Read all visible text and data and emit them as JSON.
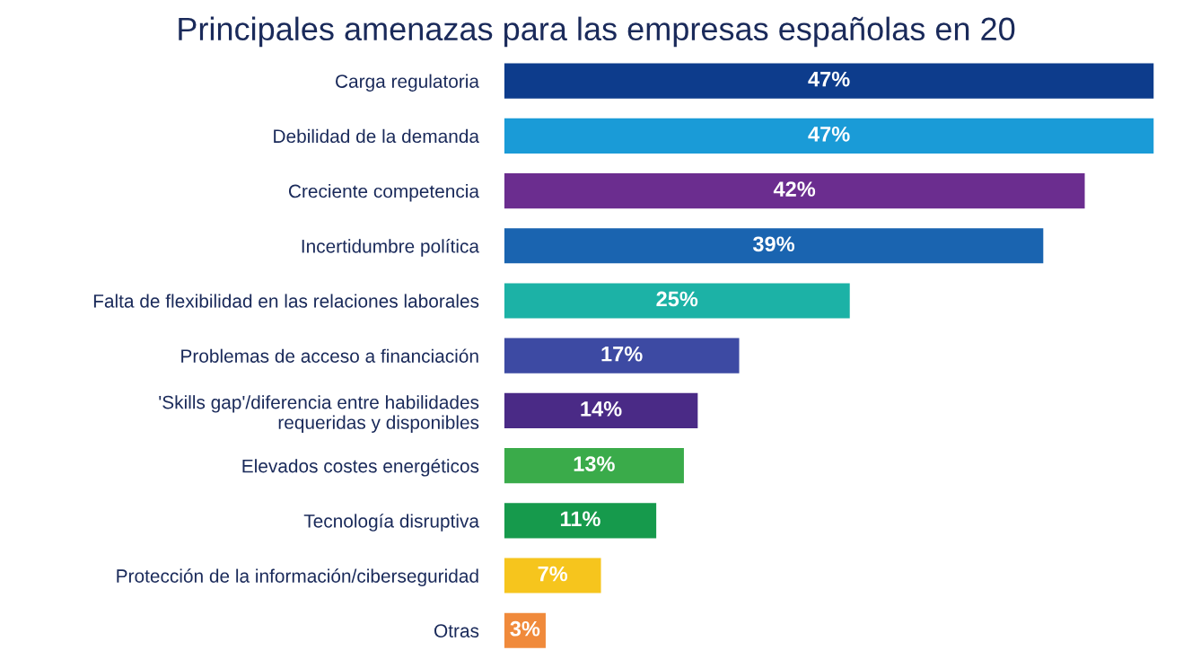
{
  "chart_data": {
    "type": "bar",
    "orientation": "horizontal",
    "title": "Principales amenazas para las empresas españolas en 20",
    "categories": [
      "Carga regulatoria",
      "Debilidad de la demanda",
      "Creciente competencia",
      "Incertidumbre política",
      "Falta de flexibilidad en las relaciones laborales",
      "Problemas de acceso a financiación",
      "'Skills gap'/diferencia entre habilidades\nrequeridas y disponibles",
      "Elevados costes energéticos",
      "Tecnología disruptiva",
      "Protección de la información/ciberseguridad",
      "Otras"
    ],
    "values": [
      47,
      47,
      42,
      39,
      25,
      17,
      14,
      13,
      11,
      7,
      3
    ],
    "colors": [
      "#0d3c8c",
      "#1a9bd7",
      "#6b2d8f",
      "#1a64b0",
      "#1cb2a6",
      "#3d4aa3",
      "#4a2a86",
      "#3aab4a",
      "#169a4c",
      "#f6c51d",
      "#f08a3b"
    ],
    "value_labels": [
      "47%",
      "47%",
      "42%",
      "39%",
      "25%",
      "17%",
      "14%",
      "13%",
      "11%",
      "7%",
      "3%"
    ],
    "tick_labels": "y",
    "grid": false,
    "legend": false
  }
}
